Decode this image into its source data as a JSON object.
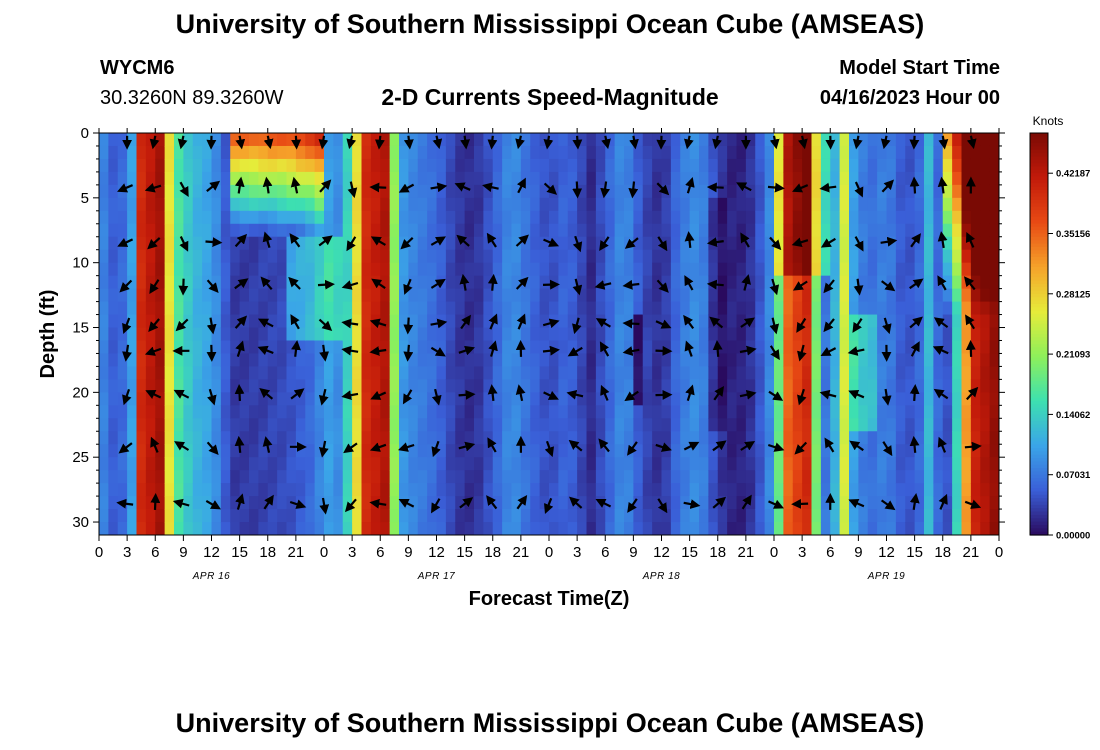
{
  "header": {
    "title": "University of Southern Mississippi Ocean Cube (AMSEAS)",
    "station_id": "WYCM6",
    "station_coords": "30.3260N  89.3260W",
    "chart_title": "2-D Currents Speed-Magnitude",
    "model_start_label": "Model Start Time",
    "model_start_value": "04/16/2023 Hour 00"
  },
  "footer": {
    "title": "University of Southern Mississippi Ocean Cube (AMSEAS)"
  },
  "chart_data": {
    "type": "heatmap",
    "title": "2-D Currents Speed-Magnitude",
    "xlabel": "Forecast Time(Z)",
    "ylabel": "Depth (ft)",
    "x_ticks": [
      "0",
      "3",
      "6",
      "9",
      "12",
      "15",
      "18",
      "21",
      "0",
      "3",
      "6",
      "9",
      "12",
      "15",
      "18",
      "21",
      "0",
      "3",
      "6",
      "9",
      "12",
      "15",
      "18",
      "21",
      "0",
      "3",
      "6",
      "9",
      "12",
      "15",
      "18",
      "21",
      "0"
    ],
    "x_range_hours": [
      0,
      96
    ],
    "date_labels": [
      {
        "label": "APR 16",
        "hour": 12
      },
      {
        "label": "APR 17",
        "hour": 36
      },
      {
        "label": "APR 18",
        "hour": 60
      },
      {
        "label": "APR 19",
        "hour": 84
      }
    ],
    "y_ticks": [
      0,
      5,
      10,
      15,
      20,
      25,
      30
    ],
    "ylim": [
      0,
      31
    ],
    "colorbar": {
      "unit": "Knots",
      "labels": [
        "0.42187",
        "0.35156",
        "0.28125",
        "0.21093",
        "0.14062",
        "0.07031",
        "0.00000"
      ],
      "range": [
        0,
        0.46875
      ]
    },
    "arrow_depths_ft": [
      4.2,
      8.4,
      11.7,
      14.7,
      16.8,
      20.2,
      24.2,
      28.6
    ],
    "arrow_hours": [
      3,
      6,
      9,
      12,
      15,
      18,
      21,
      24,
      27,
      30,
      33,
      36,
      39,
      42,
      45,
      48,
      51,
      54,
      57,
      60,
      63,
      66,
      69,
      72,
      75,
      78,
      81,
      84,
      87,
      90,
      93
    ],
    "speed_profile": [
      {
        "hour": 0,
        "speed": 0.09
      },
      {
        "hour": 2,
        "speed": 0.04
      },
      {
        "hour": 3.5,
        "speed": 0.1
      },
      {
        "hour": 4.5,
        "speed": 0.4
      },
      {
        "hour": 6.5,
        "speed": 0.44
      },
      {
        "hour": 8,
        "speed": 0.18
      },
      {
        "hour": 10,
        "speed": 0.12
      },
      {
        "hour": 12,
        "speed": 0.1
      },
      {
        "hour": 13,
        "speed": 0.07
      },
      {
        "hour": 14,
        "speed": 0.03
      },
      {
        "hour": 16,
        "speed": 0.03
      },
      {
        "hour": 20,
        "speed": 0.04
      },
      {
        "hour": 22.5,
        "speed": 0.06
      },
      {
        "hour": 24.5,
        "speed": 0.1
      },
      {
        "hour": 26,
        "speed": 0.08
      },
      {
        "hour": 28.5,
        "speed": 0.4
      },
      {
        "hour": 30.5,
        "speed": 0.43
      },
      {
        "hour": 32,
        "speed": 0.1
      },
      {
        "hour": 33.5,
        "speed": 0.08
      },
      {
        "hour": 36,
        "speed": 0.06
      },
      {
        "hour": 38,
        "speed": 0.03
      },
      {
        "hour": 40,
        "speed": 0.02
      },
      {
        "hour": 42,
        "speed": 0.05
      },
      {
        "hour": 44,
        "speed": 0.09
      },
      {
        "hour": 46,
        "speed": 0.06
      },
      {
        "hour": 48,
        "speed": 0.04
      },
      {
        "hour": 50,
        "speed": 0.06
      },
      {
        "hour": 52.5,
        "speed": 0.02
      },
      {
        "hour": 54,
        "speed": 0.05
      },
      {
        "hour": 56,
        "speed": 0.09
      },
      {
        "hour": 58,
        "speed": 0.04
      },
      {
        "hour": 60,
        "speed": 0.02
      },
      {
        "hour": 62,
        "speed": 0.07
      },
      {
        "hour": 64,
        "speed": 0.09
      },
      {
        "hour": 66,
        "speed": 0.03
      },
      {
        "hour": 68,
        "speed": 0.01
      },
      {
        "hour": 70,
        "speed": 0.03
      },
      {
        "hour": 72,
        "speed": 0.1
      },
      {
        "hour": 73.5,
        "speed": 0.35
      },
      {
        "hour": 75.5,
        "speed": 0.4
      },
      {
        "hour": 77,
        "speed": 0.09
      },
      {
        "hour": 78,
        "speed": 0.05
      },
      {
        "hour": 79.5,
        "speed": 0.25
      },
      {
        "hour": 80.5,
        "speed": 0.1
      },
      {
        "hour": 82,
        "speed": 0.06
      },
      {
        "hour": 84,
        "speed": 0.08
      },
      {
        "hour": 86,
        "speed": 0.04
      },
      {
        "hour": 87.5,
        "speed": 0.06
      },
      {
        "hour": 88.5,
        "speed": 0.12
      },
      {
        "hour": 90,
        "speed": 0.03
      },
      {
        "hour": 91,
        "speed": 0.06
      },
      {
        "hour": 93,
        "speed": 0.4
      },
      {
        "hour": 96,
        "speed": 0.46
      }
    ],
    "colors": {
      "speed_scale": [
        "#2a0a5e",
        "#3a5fd8",
        "#3aa5e8",
        "#3de0b0",
        "#8ef05a",
        "#e6ec3a",
        "#f6a22a",
        "#e84a14",
        "#c21a0a",
        "#7a0a04"
      ],
      "arrow": "#000000",
      "axis": "#000000"
    }
  }
}
